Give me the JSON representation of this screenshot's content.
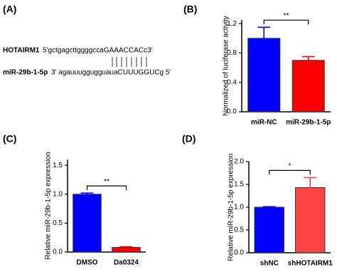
{
  "alignment": {
    "label": "(A)",
    "gene": "HOTAIRM1",
    "gene_seq": "5'gctgagcttggggccaGAAACCACc3'",
    "mirna": "miR-29b-1-5p",
    "mirna_seq": "3' agauuuggugguauaCUUUGGUCg 5'"
  },
  "chart_data": [
    {
      "type": "bar",
      "label": "(B)",
      "ylabel": "Normalized of luciferase activity",
      "categories": [
        "miR-NC",
        "miR-29b-1-5p"
      ],
      "values": [
        1.0,
        0.7
      ],
      "errors": [
        0.15,
        0.05
      ],
      "colors": [
        "#0000ff",
        "#ff0000"
      ],
      "ylim": [
        0,
        1.25
      ],
      "yticks": [
        {
          "value": 0,
          "label": "0.0"
        },
        0.4,
        0.8,
        1.2
      ],
      "significance": "**"
    },
    {
      "type": "bar",
      "label": "(C)",
      "ylabel": "Relative miR-29b-1-5p expression",
      "categories": [
        "DMSO",
        "Da0324"
      ],
      "values": [
        1.0,
        0.08
      ],
      "errors": [
        0.02,
        0.01
      ],
      "colors": [
        "#0000ff",
        "#ff0000"
      ],
      "ylim": [
        0,
        1.6
      ],
      "yticks": [
        {
          "value": 0,
          "label": "0.0"
        },
        0.5,
        {
          "value": 1,
          "label": "1.0"
        },
        1.5
      ],
      "significance": "**"
    },
    {
      "type": "bar",
      "label": "(D)",
      "ylabel": "Relative miR-29b-1-5p expression",
      "categories": [
        "shNC",
        "shHOTAIRM1"
      ],
      "values": [
        1.0,
        1.43
      ],
      "errors": [
        0.01,
        0.22
      ],
      "colors": [
        "#0000ff",
        "#ff4444"
      ],
      "ylim": [
        0,
        2.0
      ],
      "yticks": [
        {
          "value": 0,
          "label": "0.0"
        },
        0.5,
        {
          "value": 1,
          "label": "1.0"
        },
        1.5,
        {
          "value": 2,
          "label": "2.0"
        }
      ],
      "significance": "*"
    }
  ]
}
